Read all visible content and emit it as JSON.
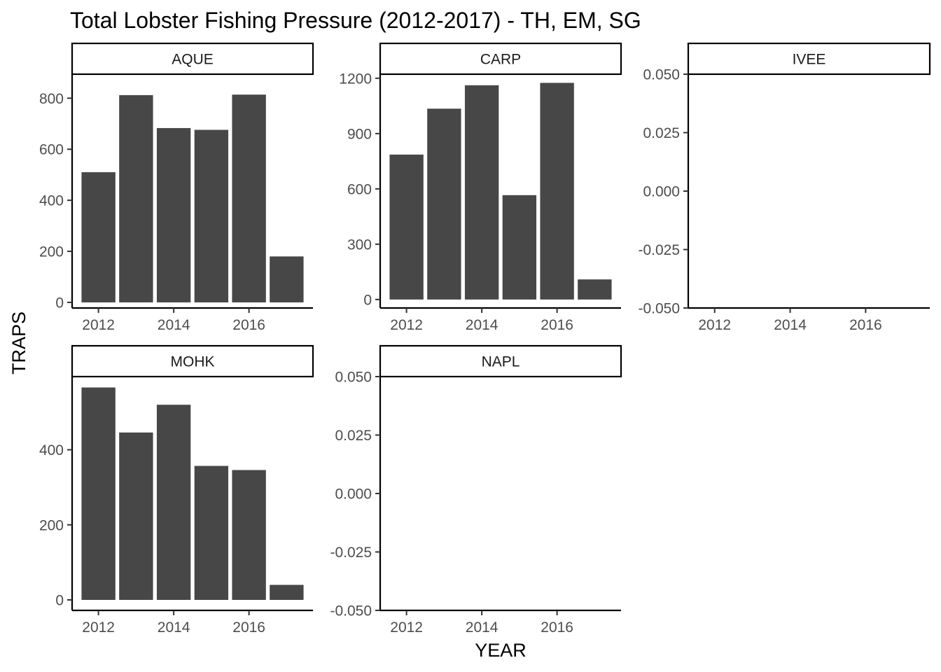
{
  "chart_data": {
    "type": "bar",
    "title": "Total Lobster Fishing Pressure (2012-2017) - TH, EM, SG",
    "xlabel": "YEAR",
    "ylabel": "TRAPS",
    "bar_color": "#474747",
    "grid": false,
    "x_categories": [
      2012,
      2013,
      2014,
      2015,
      2016,
      2017
    ],
    "x_ticks": [
      "2012",
      "2014",
      "2016"
    ],
    "facets": [
      {
        "name": "AQUE",
        "values": [
          510,
          812,
          683,
          676,
          814,
          180
        ],
        "ylim": [
          -22,
          894
        ],
        "y_ticks": [
          "0",
          "200",
          "400",
          "600",
          "800"
        ],
        "y_tick_values": [
          0,
          200,
          400,
          600,
          800
        ]
      },
      {
        "name": "CARP",
        "values": [
          786,
          1035,
          1162,
          566,
          1175,
          109
        ],
        "ylim": [
          -46,
          1222
        ],
        "y_ticks": [
          "0",
          "300",
          "600",
          "900",
          "1200"
        ],
        "y_tick_values": [
          0,
          300,
          600,
          900,
          1200
        ]
      },
      {
        "name": "IVEE",
        "values": [],
        "ylim": [
          -0.05,
          0.05
        ],
        "y_ticks": [
          "-0.050",
          "-0.025",
          "0.000",
          "0.025",
          "0.050"
        ],
        "y_tick_values": [
          -0.05,
          -0.025,
          0,
          0.025,
          0.05
        ]
      },
      {
        "name": "MOHK",
        "values": [
          566,
          446,
          520,
          357,
          346,
          40
        ],
        "ylim": [
          -28,
          595
        ],
        "y_ticks": [
          "0",
          "200",
          "400"
        ],
        "y_tick_values": [
          0,
          200,
          400
        ]
      },
      {
        "name": "NAPL",
        "values": [],
        "ylim": [
          -0.05,
          0.05
        ],
        "y_ticks": [
          "-0.050",
          "-0.025",
          "0.000",
          "0.025",
          "0.050"
        ],
        "y_tick_values": [
          -0.05,
          -0.025,
          0,
          0.025,
          0.05
        ]
      }
    ]
  }
}
